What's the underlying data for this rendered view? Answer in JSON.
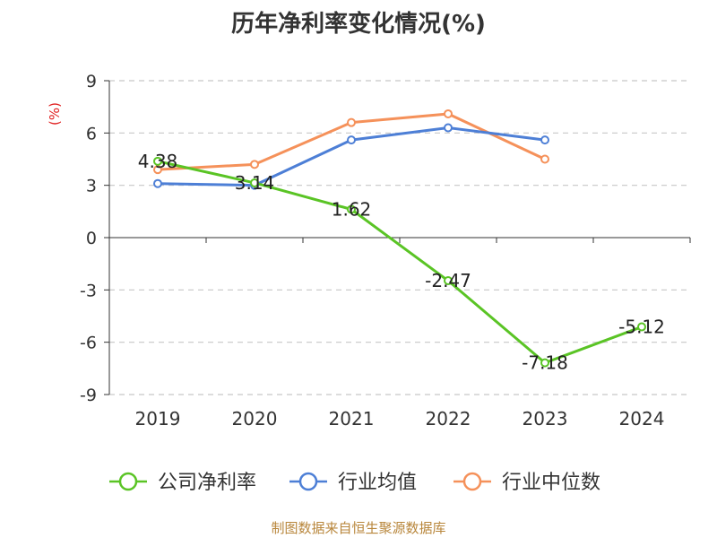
{
  "title": "历年净利率变化情况(%)",
  "source": "制图数据来自恒生聚源数据库",
  "chart_data": {
    "type": "line",
    "title": "历年净利率变化情况(%)",
    "ylabel": "(%)",
    "categories": [
      "2019",
      "2020",
      "2021",
      "2022",
      "2023",
      "2024"
    ],
    "yticks": [
      "9",
      "6",
      "3",
      "0",
      "-3",
      "-6",
      "-9"
    ],
    "ylim": [
      -9,
      9
    ],
    "grid": true,
    "legend_position": "bottom",
    "series": [
      {
        "name": "公司净利率",
        "color": "#5ac425",
        "values": [
          4.38,
          3.14,
          1.62,
          -2.47,
          -7.18,
          -5.12
        ],
        "labels": [
          "4.38",
          "3.14",
          "1.62",
          "-2.47",
          "-7.18",
          "-5.12"
        ]
      },
      {
        "name": "行业均值",
        "color": "#4d7fd6",
        "values": [
          3.1,
          3.0,
          5.6,
          6.3,
          5.6,
          null
        ]
      },
      {
        "name": "行业中位数",
        "color": "#f5915a",
        "values": [
          3.9,
          4.2,
          6.6,
          7.1,
          4.5,
          null
        ]
      }
    ]
  }
}
